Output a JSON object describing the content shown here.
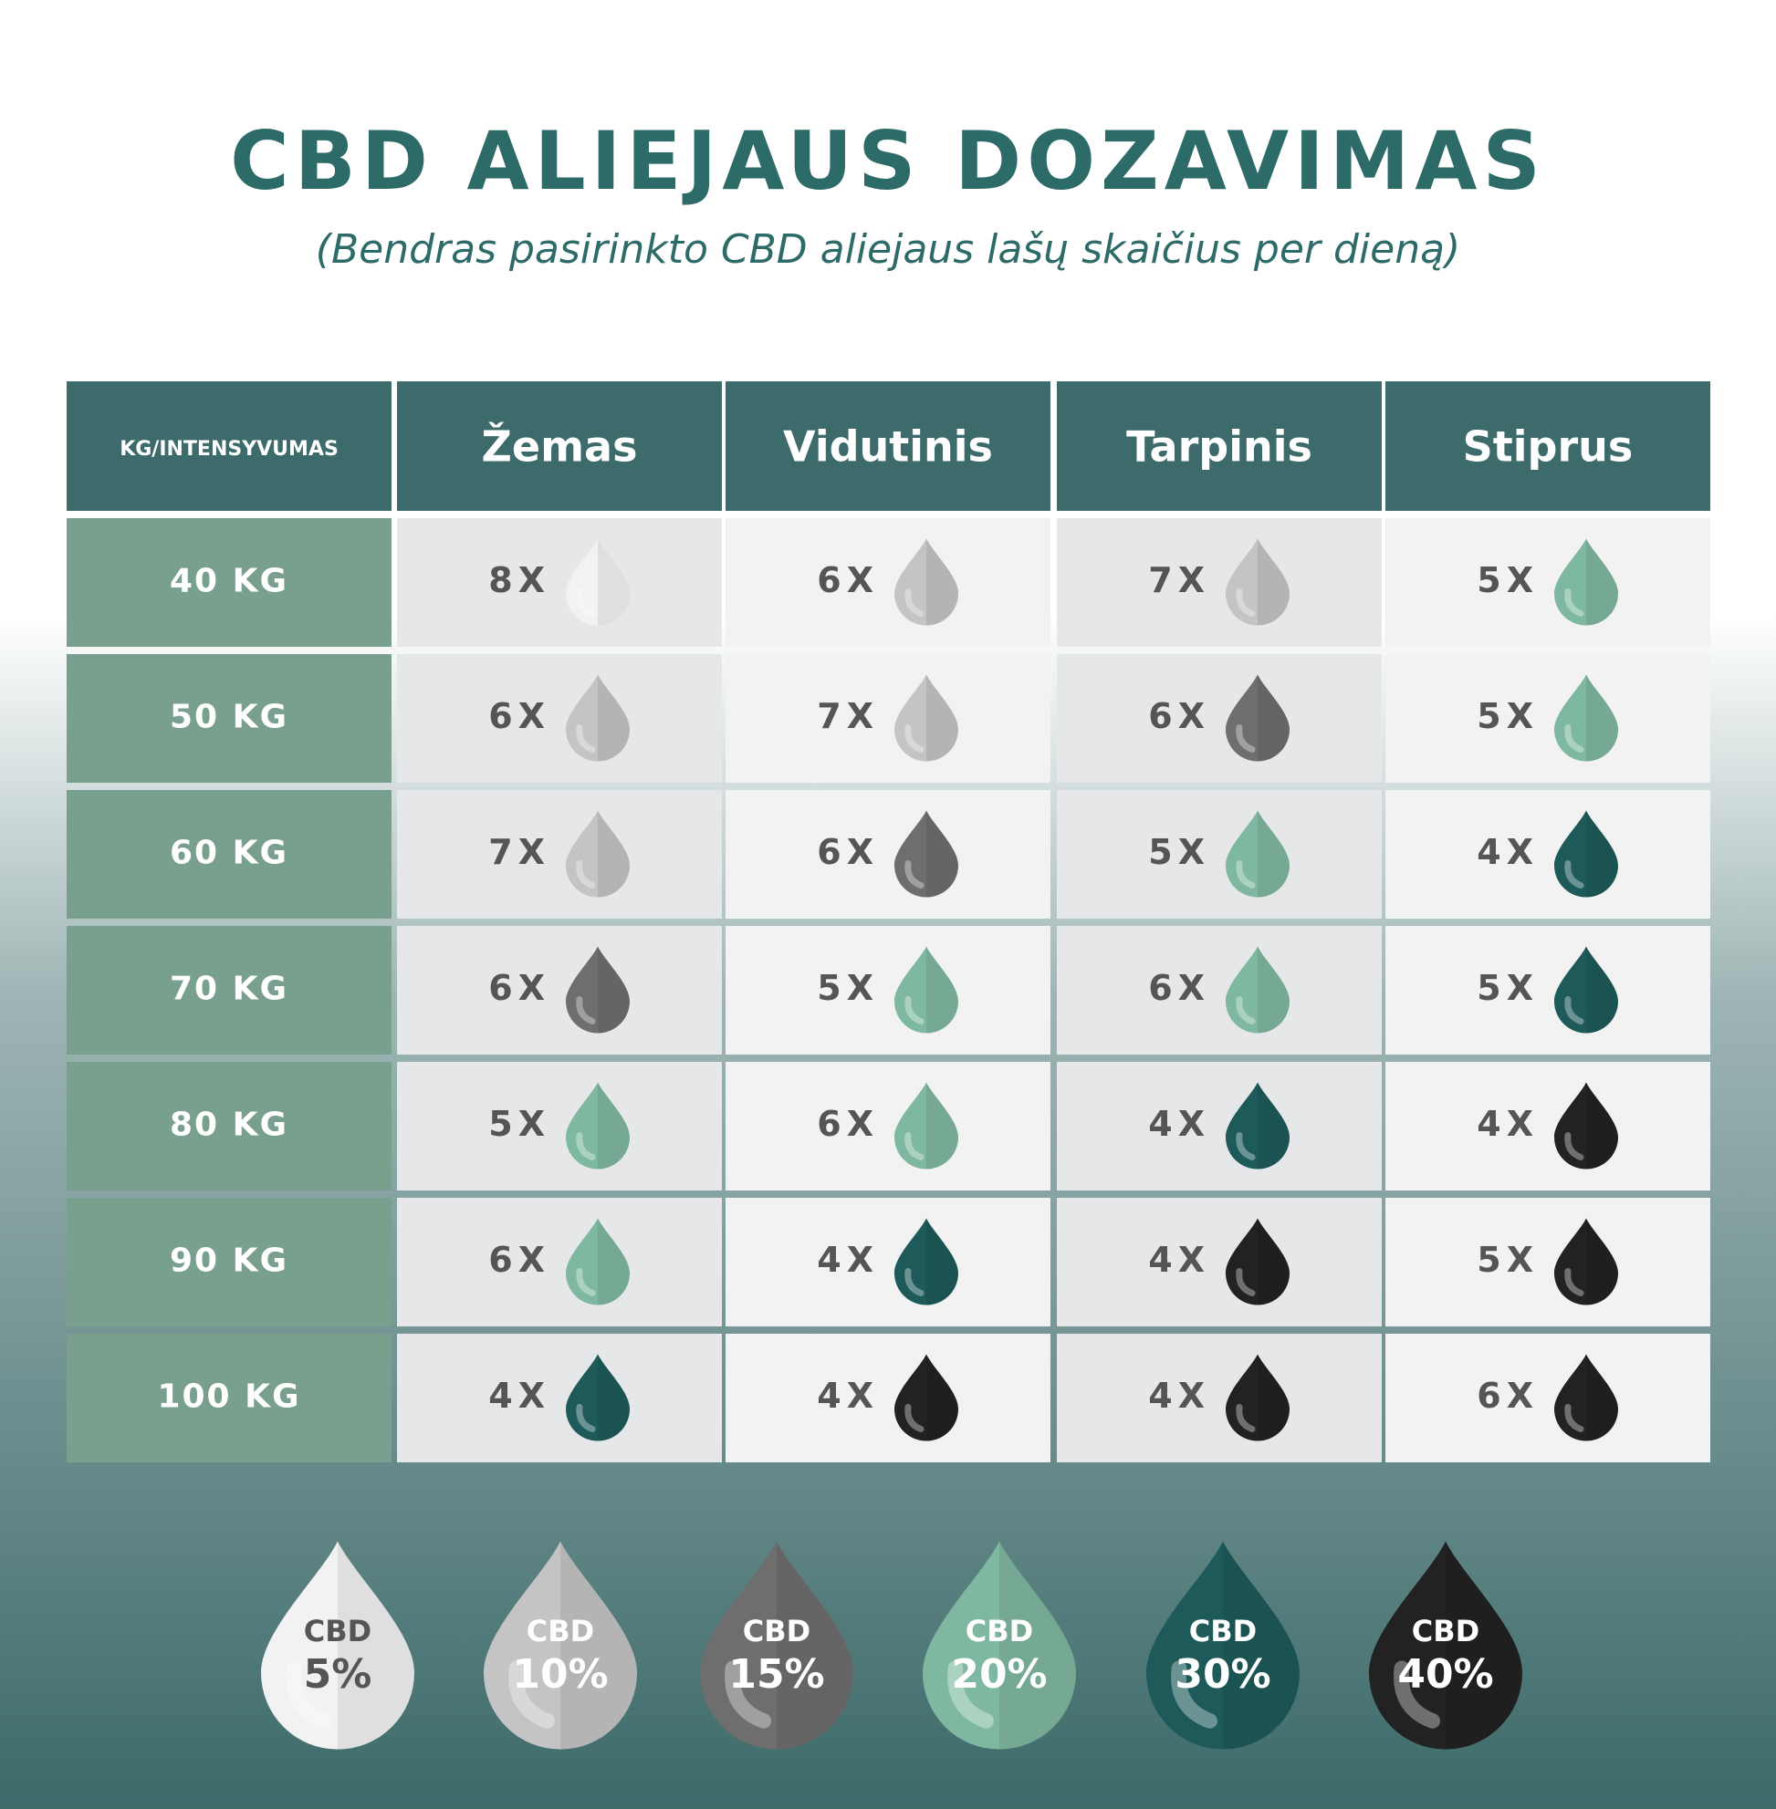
{
  "header": {
    "title": "CBD ALIEJAUS DOZAVIMAS",
    "subtitle": "(Bendras pasirinkto CBD aliejaus lašų skaičius per dieną)"
  },
  "table": {
    "columns": [
      "KG/INTENSYVUMAS",
      "Žemas",
      "Vidutinis",
      "Tarpinis",
      "Stiprus"
    ],
    "rows": [
      {
        "label": "40 KG",
        "cells": [
          {
            "text": "8X",
            "color": "#f2f2f2"
          },
          {
            "text": "6X",
            "color": "#c4c4c4"
          },
          {
            "text": "7X",
            "color": "#c4c4c4"
          },
          {
            "text": "5X",
            "color": "#7fb8a0"
          }
        ]
      },
      {
        "label": "50 KG",
        "cells": [
          {
            "text": "6X",
            "color": "#c4c4c4"
          },
          {
            "text": "7X",
            "color": "#c4c4c4"
          },
          {
            "text": "6X",
            "color": "#6e6e6e"
          },
          {
            "text": "5X",
            "color": "#7fb8a0"
          }
        ]
      },
      {
        "label": "60 KG",
        "cells": [
          {
            "text": "7X",
            "color": "#c4c4c4"
          },
          {
            "text": "6X",
            "color": "#6e6e6e"
          },
          {
            "text": "5X",
            "color": "#7fb8a0"
          },
          {
            "text": "4X",
            "color": "#1e5a5a"
          }
        ]
      },
      {
        "label": "70 KG",
        "cells": [
          {
            "text": "6X",
            "color": "#6e6e6e"
          },
          {
            "text": "5X",
            "color": "#7fb8a0"
          },
          {
            "text": "6X",
            "color": "#7fb8a0"
          },
          {
            "text": "5X",
            "color": "#1e5a5a"
          }
        ]
      },
      {
        "label": "80 KG",
        "cells": [
          {
            "text": "5X",
            "color": "#7fb8a0"
          },
          {
            "text": "6X",
            "color": "#7fb8a0"
          },
          {
            "text": "4X",
            "color": "#1e5a5a"
          },
          {
            "text": "4X",
            "color": "#222222"
          }
        ]
      },
      {
        "label": "90 KG",
        "cells": [
          {
            "text": "6X",
            "color": "#7fb8a0"
          },
          {
            "text": "4X",
            "color": "#1e5a5a"
          },
          {
            "text": "4X",
            "color": "#222222"
          },
          {
            "text": "5X",
            "color": "#222222"
          }
        ]
      },
      {
        "label": "100 KG",
        "cells": [
          {
            "text": "4X",
            "color": "#1e5a5a"
          },
          {
            "text": "4X",
            "color": "#222222"
          },
          {
            "text": "4X",
            "color": "#222222"
          },
          {
            "text": "6X",
            "color": "#222222"
          }
        ]
      }
    ]
  },
  "legend": [
    {
      "label": "CBD",
      "value": "5%",
      "color": "#f2f2f2",
      "text_color": "#555555"
    },
    {
      "label": "CBD",
      "value": "10%",
      "color": "#c4c4c4",
      "text_color": "#ffffff"
    },
    {
      "label": "CBD",
      "value": "15%",
      "color": "#6e6e6e",
      "text_color": "#ffffff"
    },
    {
      "label": "CBD",
      "value": "20%",
      "color": "#7fb8a0",
      "text_color": "#ffffff"
    },
    {
      "label": "CBD",
      "value": "30%",
      "color": "#1e5a5a",
      "text_color": "#ffffff"
    },
    {
      "label": "CBD",
      "value": "40%",
      "color": "#222222",
      "text_color": "#ffffff"
    }
  ]
}
